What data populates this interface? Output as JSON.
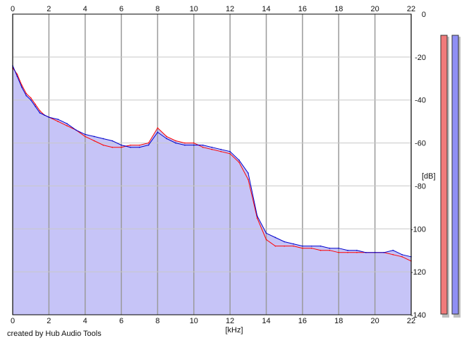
{
  "credit": "created by Hub Audio Tools",
  "chart_data": {
    "type": "line",
    "xlabel": "[kHz]",
    "ylabel": "[dB]",
    "xlim": [
      0,
      22
    ],
    "ylim": [
      -140,
      0
    ],
    "xticks": [
      0,
      2,
      4,
      6,
      8,
      10,
      12,
      14,
      16,
      18,
      20,
      22
    ],
    "yticks": [
      0,
      -20,
      -40,
      -60,
      -80,
      -100,
      -120,
      -140
    ],
    "grid": true,
    "colors": {
      "background": "#ffffff",
      "fill": "#c6c4f7",
      "grid": "#c8c8c8",
      "grid_major": "#9a9a9a",
      "left": "#ff0000",
      "right": "#0000cc",
      "left_meter": "#f07a7a",
      "right_meter": "#8f8ff4"
    },
    "series": [
      {
        "color": "#ff0000",
        "x": [
          0,
          0.25,
          0.5,
          0.75,
          1,
          1.25,
          1.5,
          1.75,
          2,
          2.5,
          3,
          3.5,
          4,
          4.5,
          5,
          5.5,
          6,
          6.5,
          7,
          7.5,
          8,
          8.5,
          9,
          9.5,
          10,
          10.5,
          11,
          11.5,
          12,
          12.5,
          13,
          13.5,
          14,
          14.5,
          15,
          15.5,
          16,
          16.5,
          17,
          17.5,
          18,
          18.5,
          19,
          19.5,
          20,
          20.5,
          21,
          21.5,
          22
        ],
        "y": [
          -25,
          -28,
          -33,
          -37,
          -39,
          -42,
          -45,
          -47,
          -48,
          -50,
          -52,
          -54,
          -57,
          -59,
          -61,
          -62,
          -62,
          -61,
          -61,
          -60,
          -53,
          -57,
          -59,
          -60,
          -60,
          -62,
          -63,
          -64,
          -65,
          -69,
          -77,
          -95,
          -105,
          -108,
          -108,
          -108,
          -109,
          -109,
          -110,
          -110,
          -111,
          -111,
          -111,
          -111,
          -111,
          -111,
          -112,
          -113,
          -115
        ]
      },
      {
        "color": "#0000cc",
        "x": [
          0,
          0.25,
          0.5,
          0.75,
          1,
          1.25,
          1.5,
          1.75,
          2,
          2.5,
          3,
          3.5,
          4,
          4.5,
          5,
          5.5,
          6,
          6.5,
          7,
          7.5,
          8,
          8.5,
          9,
          9.5,
          10,
          10.5,
          11,
          11.5,
          12,
          12.5,
          13,
          13.5,
          14,
          14.5,
          15,
          15.5,
          16,
          16.5,
          17,
          17.5,
          18,
          18.5,
          19,
          19.5,
          20,
          20.5,
          21,
          21.5,
          22
        ],
        "y": [
          -24,
          -29,
          -34,
          -38,
          -40,
          -43,
          -46,
          -47,
          -48,
          -49,
          -51,
          -54,
          -56,
          -57,
          -58,
          -59,
          -61,
          -62,
          -62,
          -61,
          -55,
          -58,
          -60,
          -61,
          -61,
          -61,
          -62,
          -63,
          -64,
          -68,
          -74,
          -94,
          -102,
          -104,
          -106,
          -107,
          -108,
          -108,
          -108,
          -109,
          -109,
          -110,
          -110,
          -111,
          -111,
          -111,
          -110,
          -112,
          -113
        ]
      }
    ],
    "meters": [
      {
        "color": "#f07a7a"
      },
      {
        "color": "#8f8ff4"
      }
    ]
  }
}
